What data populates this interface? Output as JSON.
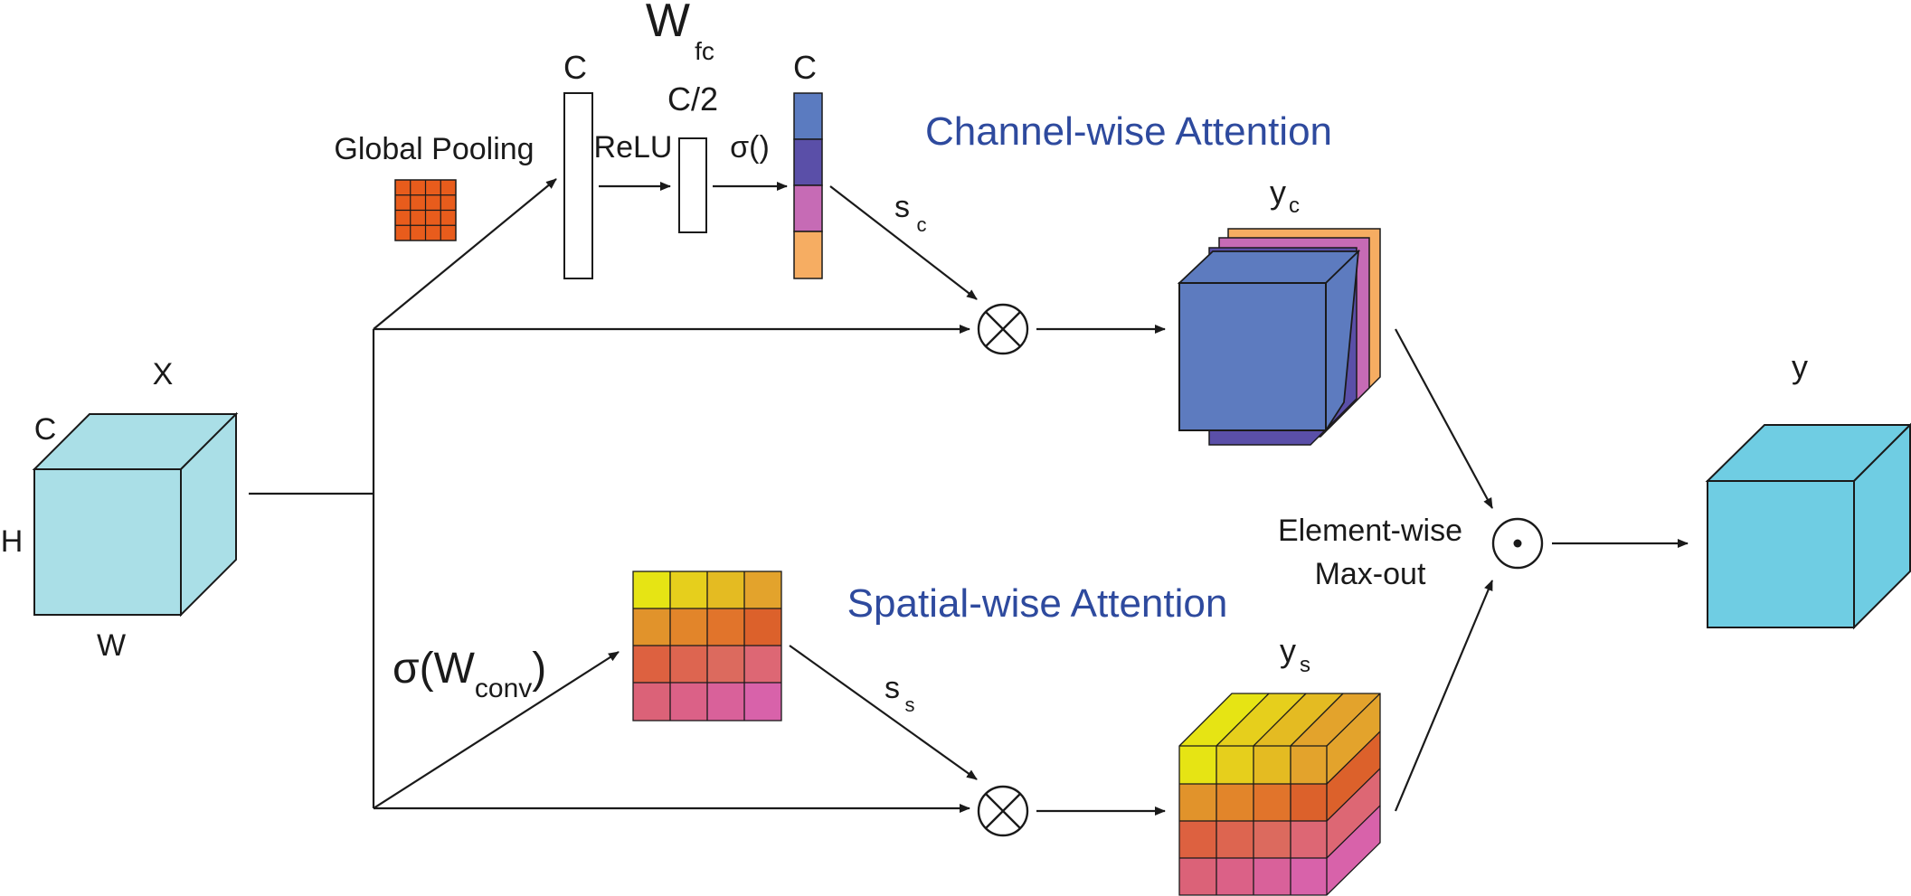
{
  "input": {
    "name": "X",
    "dim_c": "C",
    "dim_h": "H",
    "dim_w": "W"
  },
  "channel": {
    "title": "Channel-wise Attention",
    "pooling_label": "Global Pooling",
    "fc_label": "W",
    "fc_sub": "fc",
    "c_label": "C",
    "half_label": "C/2",
    "c_out_label": "C",
    "relu_label": "ReLU",
    "sigma_label": "σ()",
    "scale_label": "s",
    "scale_sub": "c",
    "output_label": "y",
    "output_sub": "c",
    "attention_colors": [
      "#5b7bc0",
      "#5a4fa8",
      "#c66bb5",
      "#f6ad62"
    ],
    "pool_color": "#e85c1c"
  },
  "spatial": {
    "title": "Spatial-wise Attention",
    "conv_label": "σ(W",
    "conv_sub": "conv",
    "conv_close": ")",
    "scale_label": "s",
    "scale_sub": "s",
    "output_label": "y",
    "output_sub": "s",
    "grid_colors": [
      [
        "#e6e414",
        "#e6cf1c",
        "#e4bb22",
        "#e3a32c"
      ],
      [
        "#e1932b",
        "#e2852a",
        "#e1742b",
        "#dc612b"
      ],
      [
        "#dd6140",
        "#dd6550",
        "#dc6a5e",
        "#dd6774"
      ],
      [
        "#db6278",
        "#db6187",
        "#d9619a",
        "#d862aa"
      ]
    ]
  },
  "fusion": {
    "label_line1": "Element-wise",
    "label_line2": "Max-out",
    "multiply_symbol": "⊗",
    "dot_symbol": "⊙"
  },
  "output": {
    "name": "y"
  },
  "colors": {
    "input_cube": "#aadfe7",
    "output_cube": "#6fcde3",
    "channel_cube": "#5d7bbf",
    "title": "#2e4a9e"
  }
}
